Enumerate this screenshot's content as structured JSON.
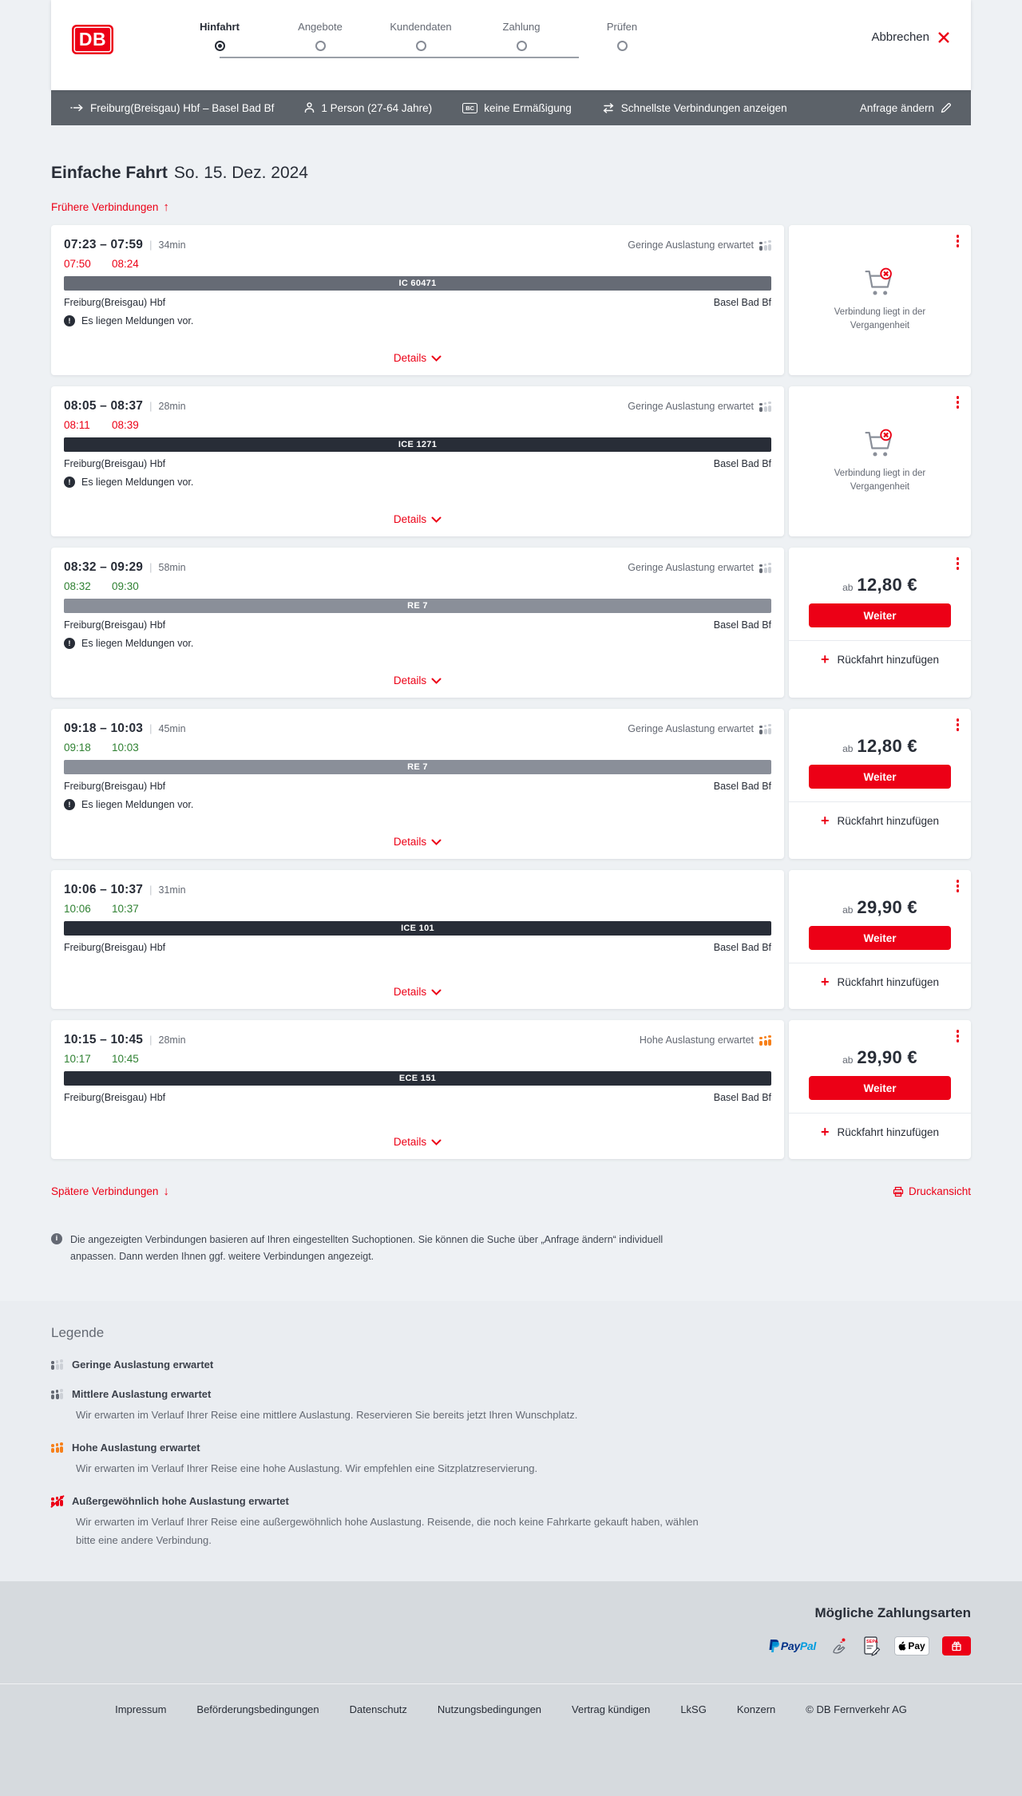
{
  "colors": {
    "brand_red": "#ec0016",
    "dark": "#282d37",
    "gray": "#646973",
    "green": "#2f8132",
    "orange": "#f7801a"
  },
  "header": {
    "logo_text": "DB",
    "cancel_label": "Abbrechen",
    "steps": [
      {
        "label": "Hinfahrt",
        "active": true
      },
      {
        "label": "Angebote",
        "active": false
      },
      {
        "label": "Kundendaten",
        "active": false
      },
      {
        "label": "Zahlung",
        "active": false
      },
      {
        "label": "Prüfen",
        "active": false
      }
    ]
  },
  "searchbar": {
    "route": "Freiburg(Breisgau) Hbf – Basel Bad Bf",
    "passengers": "1 Person (27-64 Jahre)",
    "bahncard_badge": "BC",
    "discount": "keine Ermäßigung",
    "fastest": "Schnellste Verbindungen anzeigen",
    "modify": "Anfrage ändern"
  },
  "results": {
    "title": "Einfache Fahrt",
    "date": "So. 15. Dez. 2024",
    "earlier_label": "Frühere Verbindungen",
    "later_label": "Spätere Verbindungen",
    "print_label": "Druckansicht",
    "details_label": "Details",
    "messages_label": "Es liegen Meldungen vor.",
    "past_label": "Verbindung liegt in der Vergangenheit",
    "price_prefix": "ab",
    "continue_label": "Weiter",
    "add_return_label": "Rückfahrt hinzufügen",
    "note": "Die angezeigten Verbindungen basieren auf Ihren eingestellten Suchoptionen. Sie können die Suche über „Anfrage ändern“ individuell anpassen. Dann werden Ihnen ggf. weitere Verbindungen angezeigt.",
    "connections": [
      {
        "time": "07:23 – 07:59",
        "duration": "34min",
        "occupancy_label": "Geringe Auslastung erwartet",
        "occupancy": "low",
        "actual_departure": "07:50",
        "actual_arrival": "08:24",
        "actual_status": "delayed",
        "train": "IC 60471",
        "train_color": "mid",
        "from": "Freiburg(Breisgau) Hbf",
        "to": "Basel Bad Bf",
        "has_messages": true,
        "past": true,
        "price": null
      },
      {
        "time": "08:05 – 08:37",
        "duration": "28min",
        "occupancy_label": "Geringe Auslastung erwartet",
        "occupancy": "low",
        "actual_departure": "08:11",
        "actual_arrival": "08:39",
        "actual_status": "delayed",
        "train": "ICE 1271",
        "train_color": "dark",
        "from": "Freiburg(Breisgau) Hbf",
        "to": "Basel Bad Bf",
        "has_messages": true,
        "past": true,
        "price": null
      },
      {
        "time": "08:32 – 09:29",
        "duration": "58min",
        "occupancy_label": "Geringe Auslastung erwartet",
        "occupancy": "low",
        "actual_departure": "08:32",
        "actual_arrival": "09:30",
        "actual_status": "ontime",
        "train": "RE 7",
        "train_color": "light",
        "from": "Freiburg(Breisgau) Hbf",
        "to": "Basel Bad Bf",
        "has_messages": true,
        "past": false,
        "price": "12,80 €"
      },
      {
        "time": "09:18 – 10:03",
        "duration": "45min",
        "occupancy_label": "Geringe Auslastung erwartet",
        "occupancy": "low",
        "actual_departure": "09:18",
        "actual_arrival": "10:03",
        "actual_status": "ontime",
        "train": "RE 7",
        "train_color": "light",
        "from": "Freiburg(Breisgau) Hbf",
        "to": "Basel Bad Bf",
        "has_messages": true,
        "past": false,
        "price": "12,80 €"
      },
      {
        "time": "10:06 – 10:37",
        "duration": "31min",
        "occupancy_label": "",
        "occupancy": "",
        "actual_departure": "10:06",
        "actual_arrival": "10:37",
        "actual_status": "ontime",
        "train": "ICE 101",
        "train_color": "dark",
        "from": "Freiburg(Breisgau) Hbf",
        "to": "Basel Bad Bf",
        "has_messages": false,
        "past": false,
        "price": "29,90 €"
      },
      {
        "time": "10:15 – 10:45",
        "duration": "28min",
        "occupancy_label": "Hohe Auslastung erwartet",
        "occupancy": "high",
        "actual_departure": "10:17",
        "actual_arrival": "10:45",
        "actual_status": "ontime",
        "train": "ECE 151",
        "train_color": "dark",
        "from": "Freiburg(Breisgau) Hbf",
        "to": "Basel Bad Bf",
        "has_messages": false,
        "past": false,
        "price": "29,90 €"
      }
    ]
  },
  "legend": {
    "title": "Legende",
    "items": [
      {
        "level": "low",
        "label": "Geringe Auslastung erwartet",
        "description": ""
      },
      {
        "level": "medium",
        "label": "Mittlere Auslastung erwartet",
        "description": "Wir erwarten im Verlauf Ihrer Reise eine mittlere Auslastung. Reservieren Sie bereits jetzt Ihren Wunschplatz."
      },
      {
        "level": "high",
        "label": "Hohe Auslastung erwartet",
        "description": "Wir erwarten im Verlauf Ihrer Reise eine hohe Auslastung. Wir empfehlen eine Sitzplatzreservierung."
      },
      {
        "level": "exceptional",
        "label": "Außergewöhnlich hohe Auslastung erwartet",
        "description": "Wir erwarten im Verlauf Ihrer Reise eine außergewöhnlich hohe Auslastung. Reisende, die noch keine Fahrkarte gekauft haben, wählen bitte eine andere Verbindung."
      }
    ]
  },
  "footer": {
    "payments_title": "Mögliche Zahlungsarten",
    "payment_methods": [
      "PayPal",
      "Lastschrift",
      "SEPA",
      "Apple Pay",
      "Gutschein"
    ],
    "applepay_label": "Pay",
    "links": [
      "Impressum",
      "Beförderungsbedingungen",
      "Datenschutz",
      "Nutzungsbedingungen",
      "Vertrag kündigen",
      "LkSG",
      "Konzern"
    ],
    "copyright": "© DB Fernverkehr AG"
  }
}
